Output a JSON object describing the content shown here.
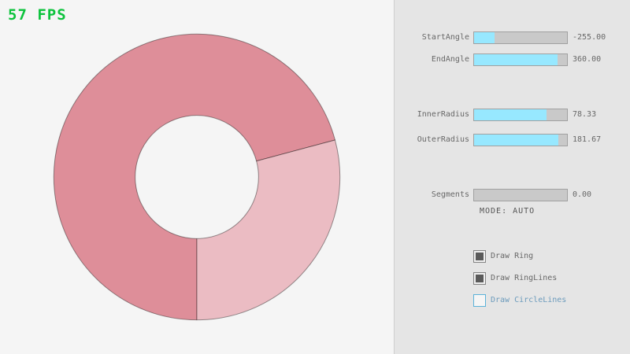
{
  "fps_label": "57 FPS",
  "fps_color": "#0cc33c",
  "ring": {
    "dark_color": "#de8e99",
    "light_color": "#ebbcc3",
    "line_color": "rgba(0,0,0,0.4)"
  },
  "panel": {
    "accent_color": "#97e8ff",
    "sliders": [
      {
        "label": "StartAngle",
        "value": "-255.00",
        "fill_pct": 22
      },
      {
        "label": "EndAngle",
        "value": "360.00",
        "fill_pct": 90
      },
      {
        "label": "InnerRadius",
        "value": "78.33",
        "fill_pct": 78
      },
      {
        "label": "OuterRadius",
        "value": "181.67",
        "fill_pct": 91
      },
      {
        "label": "Segments",
        "value": "0.00",
        "fill_pct": 0
      }
    ],
    "mode_label": "MODE: AUTO",
    "checkboxes": [
      {
        "label": "Draw Ring",
        "checked": true
      },
      {
        "label": "Draw RingLines",
        "checked": true
      },
      {
        "label": "Draw CircleLines",
        "checked": false
      }
    ]
  }
}
